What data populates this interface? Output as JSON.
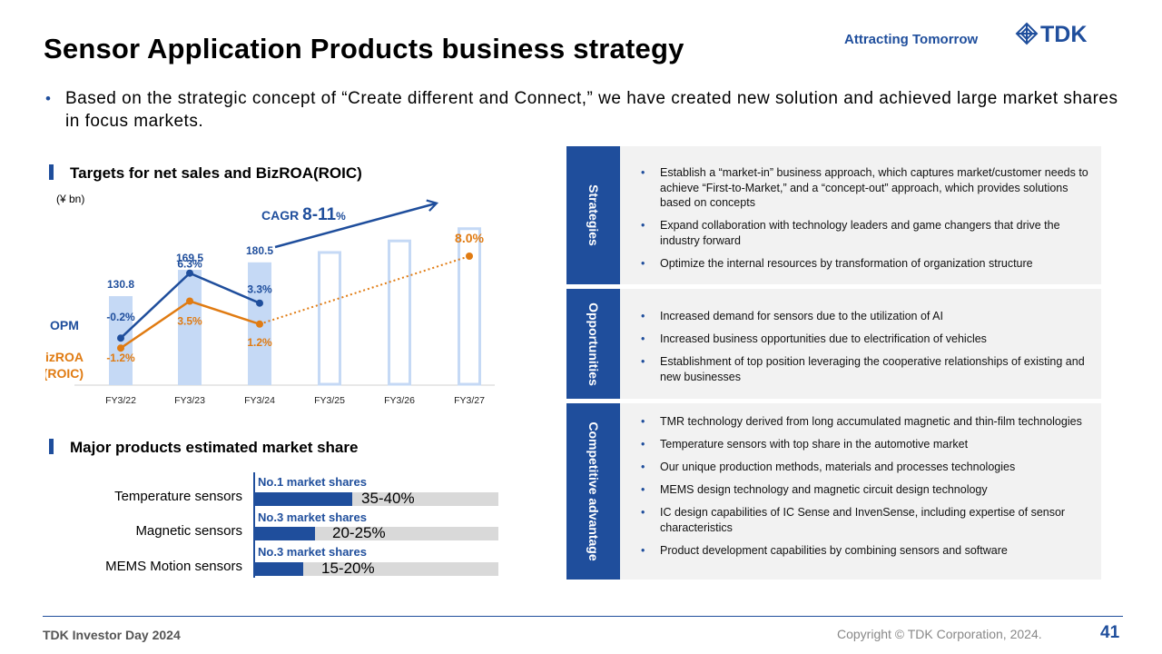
{
  "header": {
    "title": "Sensor Application Products business strategy",
    "tagline": "Attracting Tomorrow",
    "logo_text": "TDK"
  },
  "intro": {
    "bullet": "•",
    "text": "Based on the strategic concept of “Create different and Connect,” we have created new solution and achieved large market shares in focus markets."
  },
  "targets_section": {
    "heading": "Targets for net sales and BizROA(ROIC)",
    "unit": "(¥ bn)"
  },
  "chart_data": {
    "type": "bar",
    "categories": [
      "FY3/22",
      "FY3/23",
      "FY3/24",
      "FY3/25",
      "FY3/26",
      "FY3/27"
    ],
    "series": [
      {
        "name": "Net sales",
        "values": [
          130.8,
          169.5,
          180.5,
          null,
          null,
          null
        ],
        "labels": [
          "130.8",
          "169.5",
          "180.5",
          "",
          "",
          ""
        ],
        "color": "#c5d9f5"
      },
      {
        "name": "Net sales (target)",
        "values": [
          null,
          null,
          null,
          195,
          212,
          230
        ],
        "style": "outline",
        "color": "#c5d9f5"
      }
    ],
    "line_series": [
      {
        "name": "OPM",
        "values": [
          -0.2,
          6.3,
          3.3
        ],
        "labels": [
          "-0.2%",
          "6.3%",
          "3.3%"
        ],
        "color": "#1f4e9c"
      },
      {
        "name": "BizROA (ROIC)",
        "values": [
          -1.2,
          3.5,
          1.2,
          null,
          null,
          8.0
        ],
        "labels": [
          "-1.2%",
          "3.5%",
          "1.2%",
          "",
          "",
          "8.0%"
        ],
        "color": "#e07b12",
        "projection_dotted_from_index": 2
      }
    ],
    "series_labels": {
      "opm": "OPM",
      "bizroa_line1": "BizROA",
      "bizroa_line2": "(ROIC)"
    },
    "cagr": {
      "prefix": "CAGR ",
      "value": "8-11",
      "suffix": "%"
    },
    "ylim_sales": [
      0,
      235
    ],
    "ylim_pct": [
      -4,
      13
    ],
    "grid": false
  },
  "market_share": {
    "heading": "Major products estimated market share",
    "items": [
      {
        "label": "Temperature sensors",
        "rank": "No.1 market shares",
        "range": "35-40%",
        "share": 0.4
      },
      {
        "label": "Magnetic sensors",
        "rank": "No.3 market shares",
        "range": "20-25%",
        "share": 0.25
      },
      {
        "label": "MEMS Motion sensors",
        "rank": "No.3 market shares",
        "range": "15-20%",
        "share": 0.2
      }
    ]
  },
  "panel": {
    "bullet": "•",
    "sections": [
      {
        "tag": "Strategies",
        "items": [
          "Establish a “market-in” business approach, which captures market/customer needs to achieve “First-to-Market,” and a “concept-out” approach, which provides solutions based on concepts",
          "Expand collaboration with technology leaders and game changers that drive the industry forward",
          "Optimize the internal resources by transformation of organization structure"
        ]
      },
      {
        "tag": "Opportunities",
        "items": [
          "Increased demand for sensors due to the utilization of AI",
          "Increased business opportunities due to electrification of vehicles",
          "Establishment of top position leveraging the cooperative relationships of existing and new businesses"
        ]
      },
      {
        "tag": "Competitive advantage",
        "items": [
          "TMR technology derived from long accumulated magnetic and thin-film technologies",
          "Temperature sensors with top share in the automotive market",
          "Our unique production methods, materials and processes technologies",
          "MEMS design technology and magnetic circuit design technology",
          "IC design capabilities of IC Sense and InvenSense, including expertise of sensor characteristics",
          "Product development capabilities by combining sensors and software"
        ]
      }
    ]
  },
  "footer": {
    "event": "TDK Investor Day 2024",
    "copyright": "Copyright  © TDK Corporation, 2024.",
    "page": "41"
  }
}
